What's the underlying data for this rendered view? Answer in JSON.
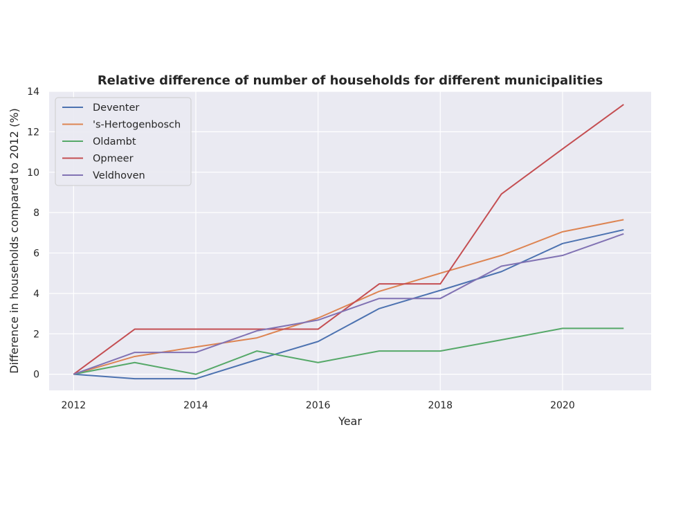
{
  "chart_data": {
    "type": "line",
    "title": "Relative difference of number of households for different municipalities",
    "xlabel": "Year",
    "ylabel": "Difference in households compared to 2012 (%)",
    "x": [
      2012,
      2013,
      2014,
      2015,
      2016,
      2017,
      2018,
      2019,
      2020,
      2021
    ],
    "xlim": [
      2011.6,
      2021.45
    ],
    "ylim": [
      -0.8,
      14
    ],
    "xticks": [
      "2012",
      "2014",
      "2016",
      "2018",
      "2020"
    ],
    "yticks": [
      "0",
      "2",
      "4",
      "6",
      "8",
      "10",
      "12",
      "14"
    ],
    "grid": true,
    "legend_position": "upper-left",
    "background": "#eaeaf2",
    "series": [
      {
        "name": "Deventer",
        "color": "#4c72b0",
        "values": [
          0,
          -0.22,
          -0.22,
          0.72,
          1.62,
          3.25,
          4.15,
          5.08,
          6.47,
          7.15
        ]
      },
      {
        "name": "'s-Hertogenbosch",
        "color": "#dd8452",
        "values": [
          0,
          0.88,
          1.35,
          1.8,
          2.78,
          4.1,
          5.0,
          5.88,
          7.05,
          7.65
        ]
      },
      {
        "name": "Oldambt",
        "color": "#55a868",
        "values": [
          0,
          0.58,
          0,
          1.15,
          0.58,
          1.15,
          1.15,
          1.7,
          2.27,
          2.27
        ]
      },
      {
        "name": "Opmeer",
        "color": "#c44e52",
        "values": [
          0,
          2.23,
          2.23,
          2.23,
          2.23,
          4.47,
          4.47,
          8.92,
          11.15,
          13.35
        ]
      },
      {
        "name": "Veldhoven",
        "color": "#8172b3",
        "values": [
          0,
          1.08,
          1.08,
          2.15,
          2.68,
          3.75,
          3.75,
          5.35,
          5.88,
          6.95
        ]
      }
    ]
  }
}
